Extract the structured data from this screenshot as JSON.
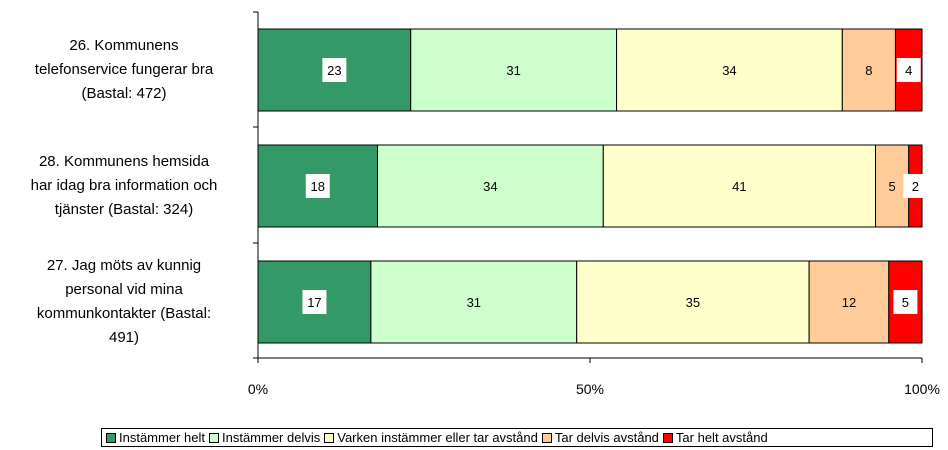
{
  "chart_data": {
    "type": "bar",
    "orientation": "horizontal",
    "stacked": true,
    "percent": true,
    "categories": [
      "26. Kommunens telefonservice fungerar bra (Bastal: 472)",
      "28. Kommunens hemsida har idag bra information och tjänster (Bastal: 324)",
      "27. Jag möts av kunnig personal vid mina kommunkontakter (Bastal: 491)"
    ],
    "category_lines": [
      [
        "26. Kommunens",
        "telefonservice fungerar bra",
        "(Bastal: 472)"
      ],
      [
        "28. Kommunens hemsida",
        "har idag bra information och",
        "tjänster (Bastal: 324)"
      ],
      [
        "27. Jag möts av kunnig",
        "personal vid mina",
        "kommunkontakter (Bastal:",
        "491)"
      ]
    ],
    "series": [
      {
        "name": "Instämmer helt",
        "color": "#339966",
        "values": [
          23,
          18,
          17
        ]
      },
      {
        "name": "Instämmer delvis",
        "color": "#ccffcc",
        "values": [
          31,
          34,
          31
        ]
      },
      {
        "name": "Varken instämmer eller tar avstånd",
        "color": "#ffffcc",
        "values": [
          34,
          41,
          35
        ]
      },
      {
        "name": "Tar delvis avstånd",
        "color": "#ffcc99",
        "values": [
          8,
          5,
          12
        ]
      },
      {
        "name": "Tar helt avstånd",
        "color": "#ff0000",
        "values": [
          4,
          2,
          5
        ]
      }
    ],
    "xlim": [
      0,
      100
    ],
    "xticks": [
      "0%",
      "50%",
      "100%"
    ],
    "legend_position": "bottom"
  }
}
